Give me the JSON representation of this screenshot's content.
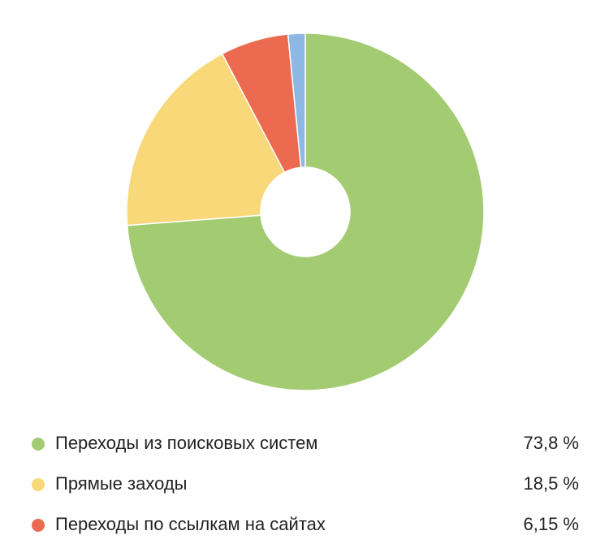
{
  "chart_data": {
    "type": "pie",
    "categories": [
      "Переходы из поисковых систем",
      "Прямые заходы",
      "Переходы по ссылкам на сайтах",
      null
    ],
    "values": [
      73.8,
      18.5,
      6.15,
      1.55
    ],
    "value_labels": [
      "73,8 %",
      "18,5 %",
      "6,15 %",
      null
    ],
    "colors": [
      "#a3cb72",
      "#f8d878",
      "#ec6a50",
      "#8db8e4"
    ],
    "hole": true
  }
}
